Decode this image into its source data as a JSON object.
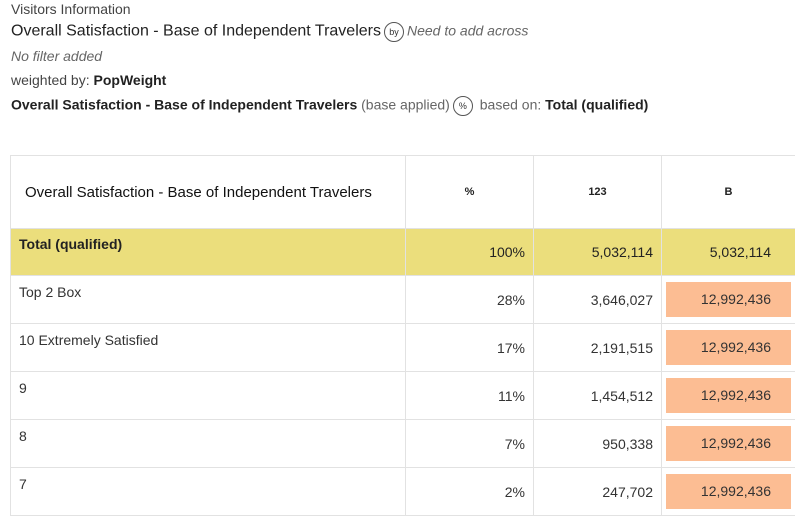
{
  "header": {
    "section": "Visitors Information",
    "title": "Overall Satisfaction - Base of Independent Travelers",
    "by_icon": "by",
    "title_note": "Need to add across",
    "filter": "No filter added",
    "weight_label": "weighted by:",
    "weight_value": "PopWeight",
    "base_variable": "Overall Satisfaction - Base of Independent Travelers",
    "base_status": "(base applied)",
    "base_icon": "%",
    "based_on_label": "based on:",
    "based_on_value": "Total (qualified)"
  },
  "table": {
    "columns": [
      "Overall Satisfaction - Base of Independent Travelers",
      "%",
      "123",
      "B"
    ],
    "rows": [
      [
        "Total (qualified)",
        "100%",
        "5,032,114",
        "5,032,114"
      ],
      [
        "Top 2 Box",
        "28%",
        "3,646,027",
        "12,992,436"
      ],
      [
        "10 Extremely Satisfied",
        "17%",
        "2,191,515",
        "12,992,436"
      ],
      [
        "9",
        "11%",
        "1,454,512",
        "12,992,436"
      ],
      [
        "8",
        "7%",
        "950,338",
        "12,992,436"
      ],
      [
        "7",
        "2%",
        "247,702",
        "12,992,436"
      ]
    ]
  }
}
